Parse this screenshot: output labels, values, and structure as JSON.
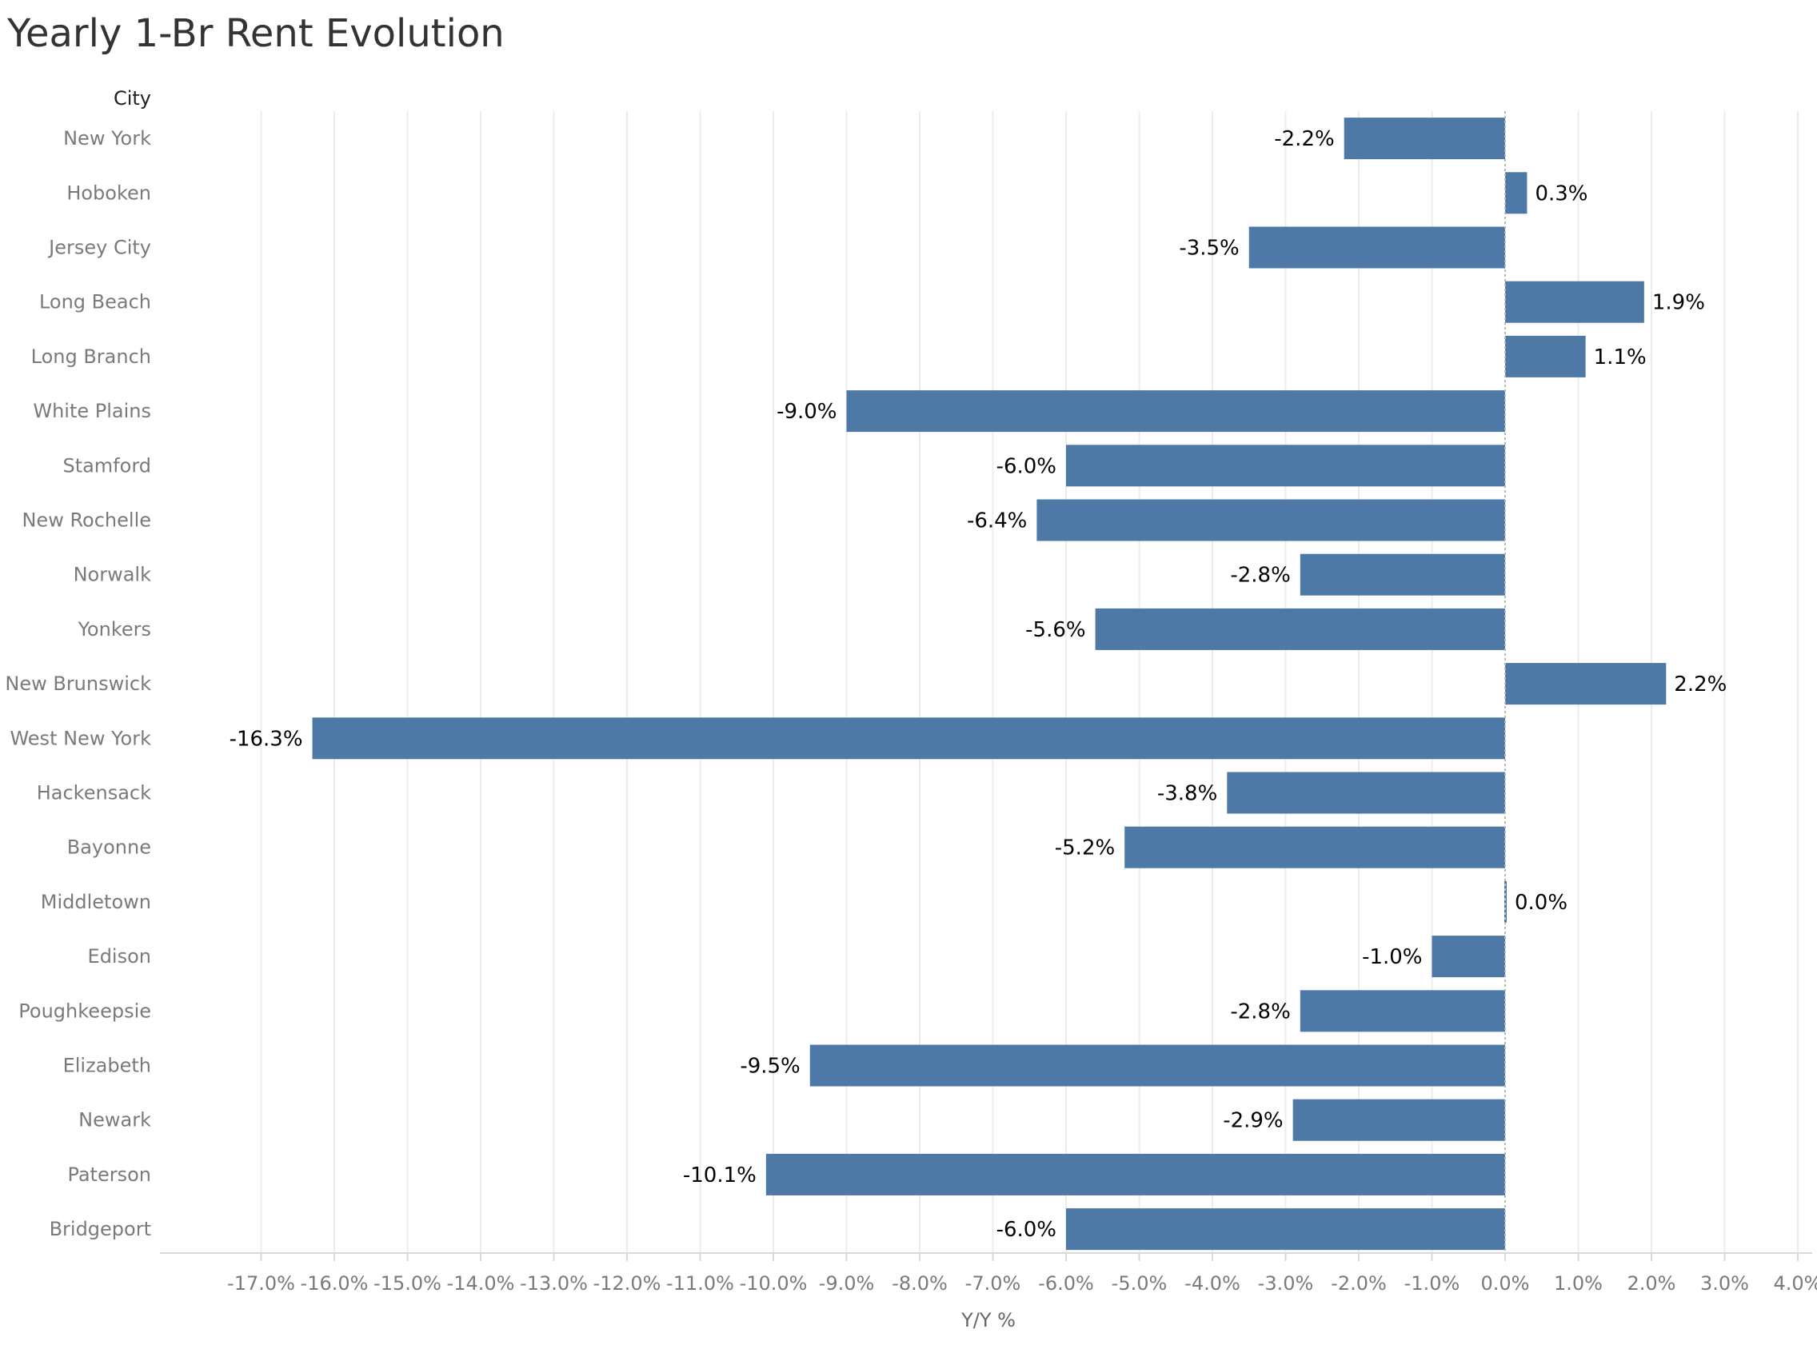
{
  "colors": {
    "bar": "#4e79a7",
    "grid": "#ececec",
    "zero_line": "#b8b8b8",
    "axis": "#d9d9d9"
  },
  "chart_data": {
    "type": "bar",
    "orientation": "horizontal",
    "title": "Yearly 1-Br Rent Evolution",
    "row_header": "City",
    "xlabel": "Y/Y %",
    "xlim": [
      -17.0,
      4.0
    ],
    "x_ticks": [
      -17,
      -16,
      -15,
      -14,
      -13,
      -12,
      -11,
      -10,
      -9,
      -8,
      -7,
      -6,
      -5,
      -4,
      -3,
      -2,
      -1,
      0,
      1,
      2,
      3,
      4
    ],
    "tick_format": "percent_1dp",
    "grid": true,
    "categories": [
      "New York",
      "Hoboken",
      "Jersey City",
      "Long Beach",
      "Long Branch",
      "White Plains",
      "Stamford",
      "New Rochelle",
      "Norwalk",
      "Yonkers",
      "New Brunswick",
      "West New York",
      "Hackensack",
      "Bayonne",
      "Middletown",
      "Edison",
      "Poughkeepsie",
      "Elizabeth",
      "Newark",
      "Paterson",
      "Bridgeport"
    ],
    "values": [
      -2.2,
      0.3,
      -3.5,
      1.9,
      1.1,
      -9.0,
      -6.0,
      -6.4,
      -2.8,
      -5.6,
      2.2,
      -16.3,
      -3.8,
      -5.2,
      0.0,
      -1.0,
      -2.8,
      -9.5,
      -2.9,
      -10.1,
      -6.0
    ]
  }
}
